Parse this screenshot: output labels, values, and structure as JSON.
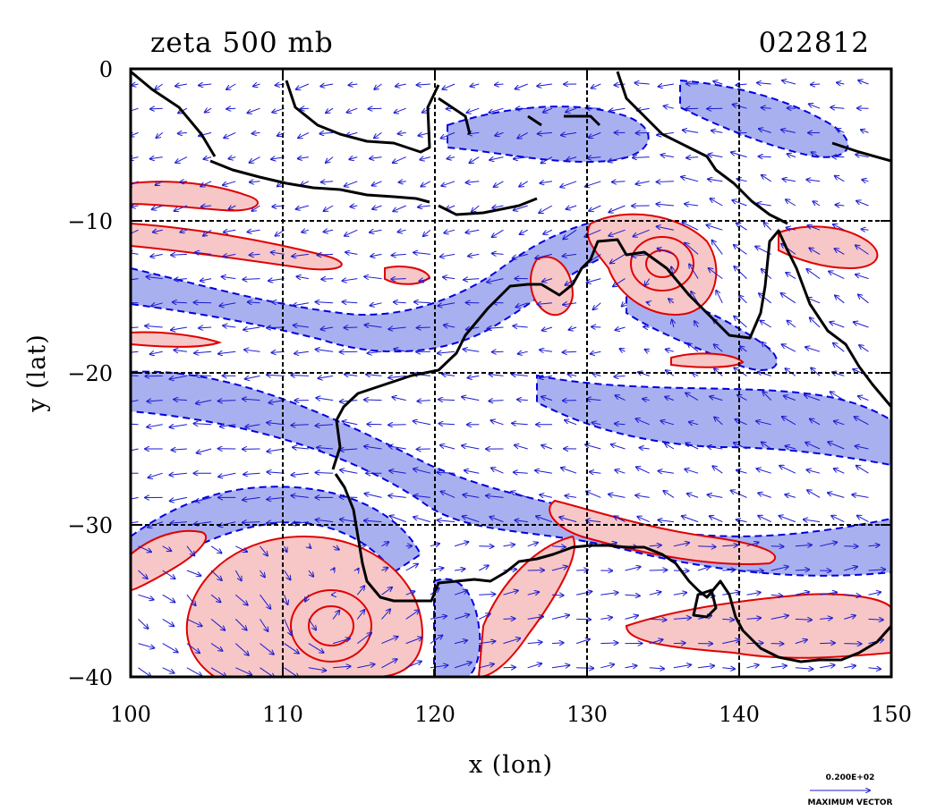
{
  "chart_data": {
    "type": "contour",
    "title": "zeta 500 mb",
    "subtitle": "022812",
    "xlabel": "x (lon)",
    "ylabel": "y (lat)",
    "xlim": [
      100,
      150
    ],
    "ylim": [
      -40,
      0
    ],
    "xticks": [
      100,
      110,
      120,
      130,
      140,
      150
    ],
    "yticks": [
      0,
      -10,
      -20,
      -30,
      -40
    ],
    "grid": true,
    "colors": {
      "positive_fill": "#f7c6c6",
      "positive_line": "#e00000",
      "negative_fill": "#a9b0f0",
      "negative_line": "#0000e0",
      "vector": "#1a1ad0",
      "coast": "#000000"
    },
    "vector_key": {
      "value": "0.200E+02",
      "label": "MAXIMUM VECTOR"
    }
  }
}
